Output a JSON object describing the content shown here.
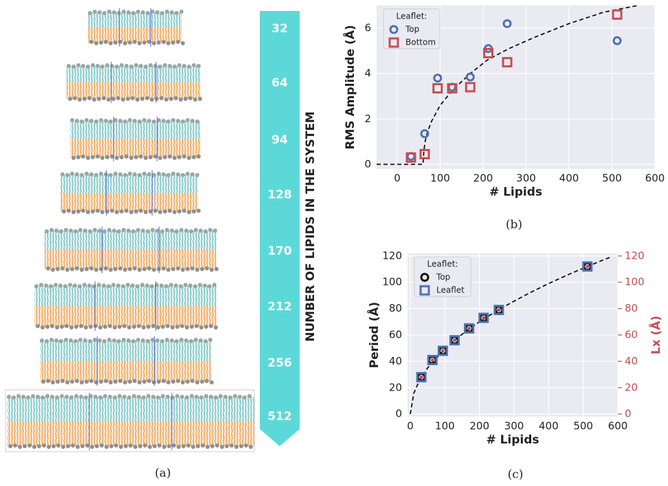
{
  "panel_a": {
    "counts": [
      32,
      64,
      94,
      128,
      170,
      212,
      256,
      512
    ],
    "axis_label": "NUMBER OF LIPIDS IN THE SYSTEM",
    "caption": "(a)"
  },
  "chart_data": [
    {
      "type": "scatter",
      "caption": "(b)",
      "xlabel": "# Lipids",
      "ylabel": "RMS Amplitude (Å)",
      "xlim": [
        -48,
        600
      ],
      "ylim": [
        -0.2,
        7
      ],
      "xticks": [
        0,
        100,
        200,
        300,
        400,
        500,
        600
      ],
      "yticks": [
        0,
        2,
        4,
        6
      ],
      "grid": true,
      "legend_title": "Leaflet:",
      "legend": "upper left",
      "x": [
        32,
        64,
        94,
        128,
        170,
        212,
        256,
        512
      ],
      "series": [
        {
          "name": "Top",
          "color": "#4c72b0",
          "marker": "circle",
          "values": [
            0.35,
            1.35,
            3.8,
            3.4,
            3.85,
            5.1,
            6.2,
            5.45
          ]
        },
        {
          "name": "Bottom",
          "color": "#c44e52",
          "marker": "square",
          "values": [
            0.3,
            0.45,
            3.35,
            3.35,
            3.4,
            4.9,
            4.5,
            6.6
          ]
        }
      ],
      "fit": {
        "x": [
          -48,
          60,
          62,
          65,
          70,
          80,
          100,
          130,
          170,
          210,
          260,
          320,
          400,
          480,
          560
        ],
        "values": [
          0,
          0,
          0.6,
          1.0,
          1.4,
          1.9,
          2.6,
          3.3,
          4.0,
          4.6,
          5.1,
          5.6,
          6.2,
          6.7,
          7.0
        ]
      }
    },
    {
      "type": "scatter",
      "caption": "(c)",
      "xlabel": "# Lipids",
      "ylabel": "Period (Å)",
      "y2label": "Lx (Å)",
      "y2color": "#c44e52",
      "xlim": [
        -8,
        600
      ],
      "ylim": [
        -2,
        122
      ],
      "y2lim": [
        -2,
        122
      ],
      "xticks": [
        0,
        100,
        200,
        300,
        400,
        500,
        600
      ],
      "yticks": [
        0,
        20,
        40,
        60,
        80,
        100,
        120
      ],
      "y2ticks": [
        0,
        20,
        40,
        60,
        80,
        100,
        120
      ],
      "grid": true,
      "legend_title": "Leaflet:",
      "legend": "upper left",
      "x": [
        32,
        64,
        94,
        128,
        170,
        212,
        256,
        512
      ],
      "series": [
        {
          "name": "Top",
          "color": "#111111",
          "marker": "circle",
          "values": [
            28,
            41,
            48,
            56,
            65,
            73,
            79,
            112
          ]
        },
        {
          "name": "Leaflet",
          "color": "#4c72b0",
          "marker": "square",
          "values": [
            28,
            41,
            48,
            56,
            65,
            73,
            79,
            112
          ]
        },
        {
          "color": "#c44e52",
          "marker": "dot",
          "axis": "y2",
          "values": [
            28,
            41,
            48,
            56,
            65,
            73,
            79,
            112
          ]
        }
      ],
      "fit": {
        "x": [
          0,
          10,
          25,
          50,
          100,
          150,
          200,
          250,
          300,
          350,
          400,
          450,
          500,
          550,
          580
        ],
        "values": [
          0,
          15.7,
          24.7,
          35,
          49.5,
          60.6,
          70,
          78.3,
          85.7,
          92.6,
          99,
          105,
          110.7,
          116.1,
          119.2
        ]
      }
    }
  ]
}
